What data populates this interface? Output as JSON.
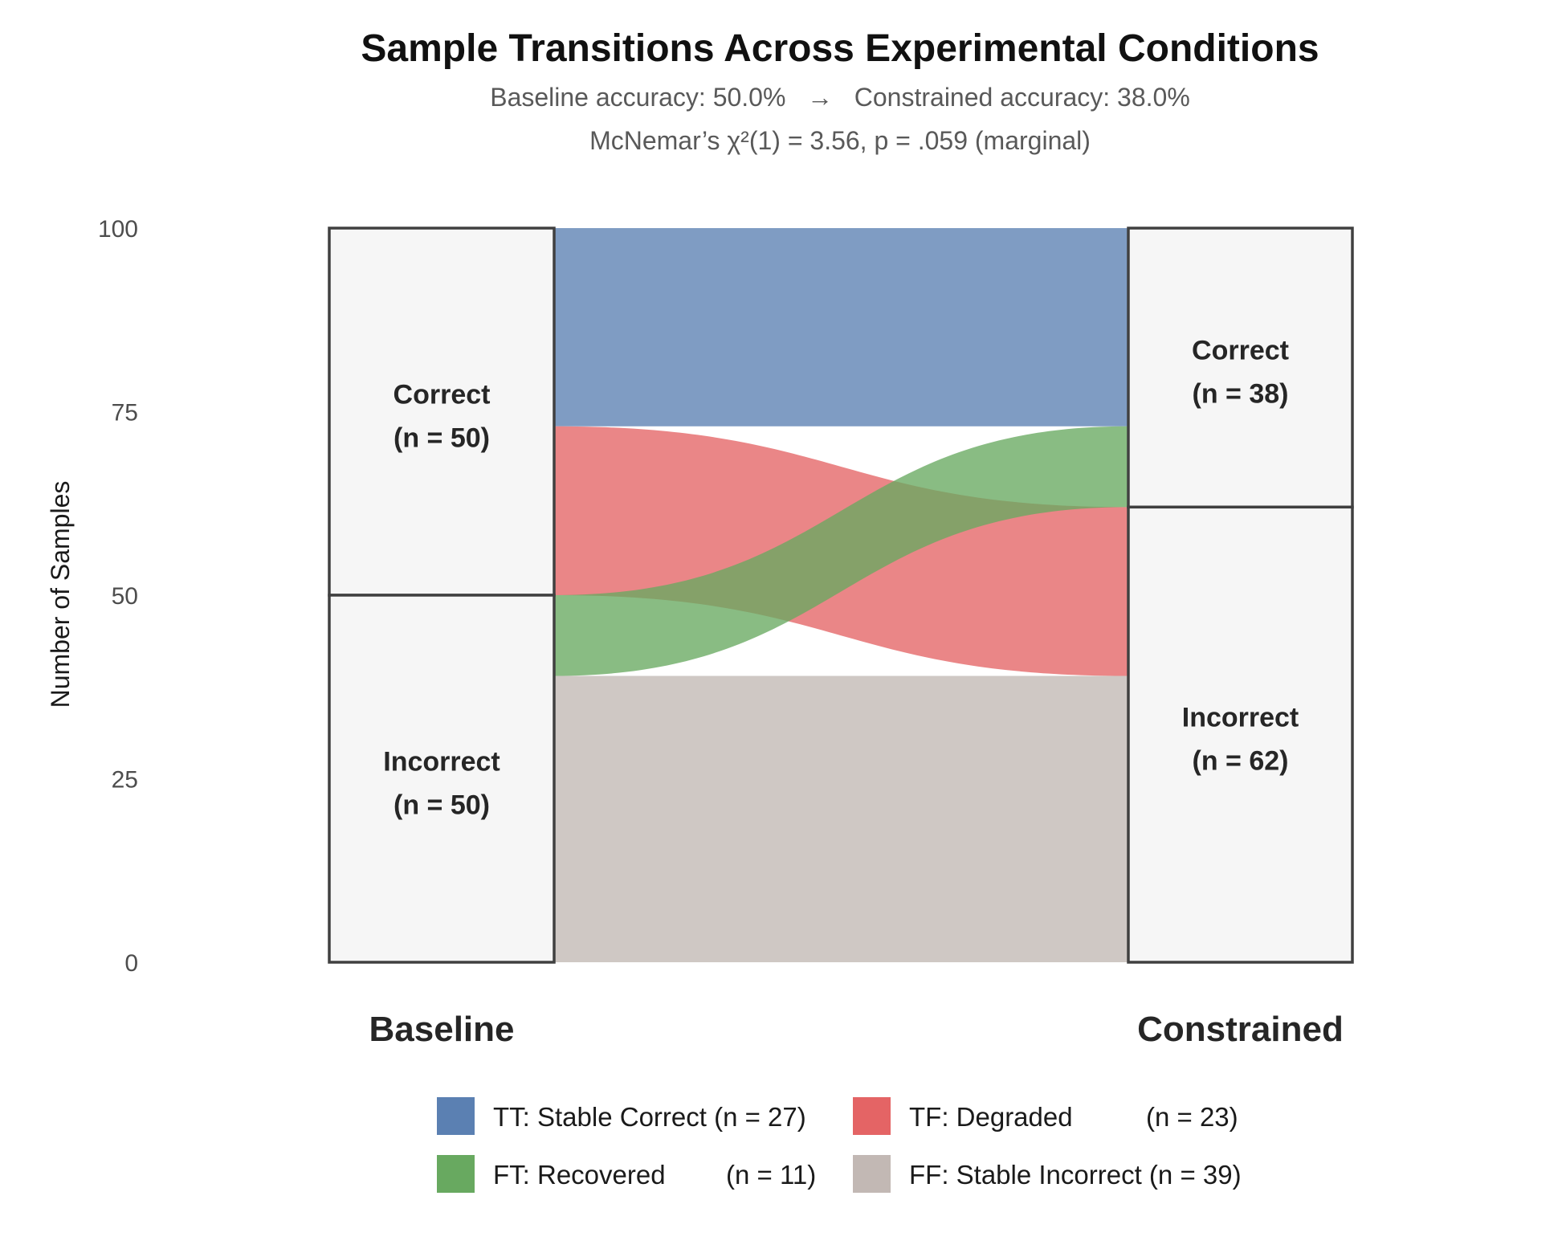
{
  "chart_data": {
    "type": "alluvial",
    "title": "Sample Transitions Across Experimental Conditions",
    "subtitle_line1": "Baseline accuracy: 50.0%   →   Constrained accuracy: 38.0%",
    "subtitle_line2": "McNemar’s χ²(1) = 3.56, p = .059 (marginal)",
    "ylabel": "Number of Samples",
    "ylim": [
      0,
      100
    ],
    "yticks": [
      "0",
      "25",
      "50",
      "75",
      "100"
    ],
    "yticks_values": [
      0,
      25,
      50,
      75,
      100
    ],
    "axes": [
      {
        "name": "Baseline",
        "nodes": [
          {
            "label": "Correct",
            "count_label": "(n = 50)",
            "value": 50
          },
          {
            "label": "Incorrect",
            "count_label": "(n = 50)",
            "value": 50
          }
        ]
      },
      {
        "name": "Constrained",
        "nodes": [
          {
            "label": "Correct",
            "count_label": "(n = 38)",
            "value": 38
          },
          {
            "label": "Incorrect",
            "count_label": "(n = 62)",
            "value": 62
          }
        ]
      }
    ],
    "flows": [
      {
        "code": "TT",
        "from": "Correct",
        "to": "Correct",
        "value": 27,
        "color": "#5b80b2",
        "legend_label": "TT: Stable Correct (n = 27)"
      },
      {
        "code": "TF",
        "from": "Correct",
        "to": "Incorrect",
        "value": 23,
        "color": "#e46465",
        "legend_label": "TF: Degraded",
        "legend_count": "(n = 23)"
      },
      {
        "code": "FT",
        "from": "Incorrect",
        "to": "Correct",
        "value": 11,
        "color": "#68a960",
        "legend_label": "FT: Recovered",
        "legend_count": "(n = 11)"
      },
      {
        "code": "FF",
        "from": "Incorrect",
        "to": "Incorrect",
        "value": 39,
        "color": "#c2b8b4",
        "legend_label": "FF: Stable Incorrect (n = 39)"
      }
    ],
    "legend_position": "bottom"
  }
}
